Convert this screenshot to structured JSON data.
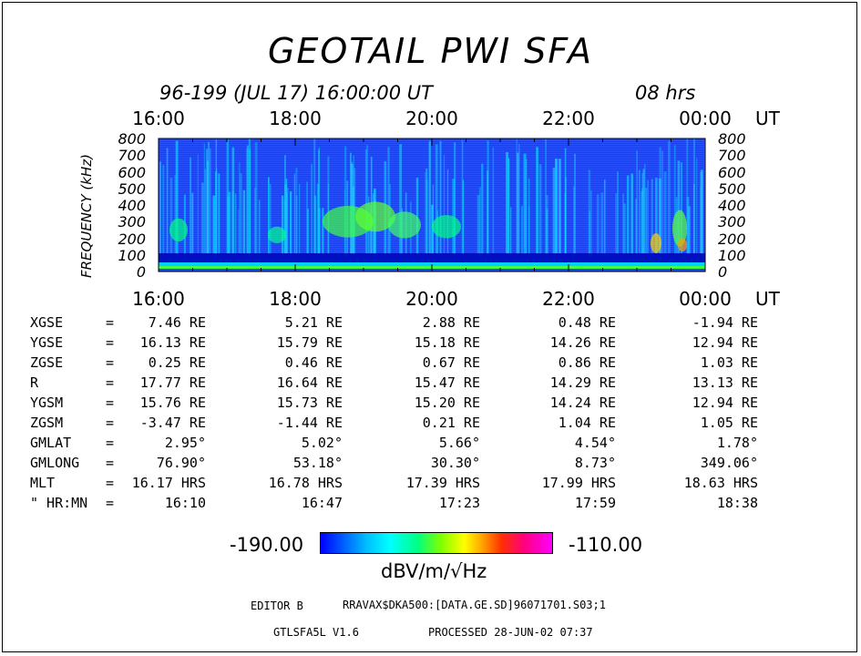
{
  "title": "GEOTAIL PWI SFA",
  "subtitle": "96-199 (JUL 17) 16:00:00 UT",
  "duration": "08 hrs",
  "chart_data": {
    "type": "heatmap",
    "ylabel": "FREQUENCY (kHz)",
    "xunit": "UT",
    "x_ticks": [
      "16:00",
      "18:00",
      "20:00",
      "22:00",
      "00:00"
    ],
    "y_ticks": [
      "800",
      "700",
      "600",
      "500",
      "400",
      "300",
      "200",
      "100",
      "0"
    ],
    "ylim": [
      0,
      800
    ],
    "colorbar": {
      "min": "-190.00",
      "max": "-110.00",
      "unit": "dBV/m/√Hz"
    }
  },
  "colors": {
    "intensity_low": "#0000ff",
    "intensity_mid": "#00ffff",
    "intensity_high": "#ff00ff"
  },
  "orbit": {
    "rows": [
      {
        "label": "XGSE",
        "eq": "=",
        "values": [
          "7.46 RE",
          "5.21 RE",
          "2.88 RE",
          "0.48 RE",
          "-1.94 RE"
        ]
      },
      {
        "label": "YGSE",
        "eq": "=",
        "values": [
          "16.13 RE",
          "15.79 RE",
          "15.18 RE",
          "14.26 RE",
          "12.94 RE"
        ]
      },
      {
        "label": "ZGSE",
        "eq": "=",
        "values": [
          "0.25 RE",
          "0.46 RE",
          "0.67 RE",
          "0.86 RE",
          "1.03 RE"
        ]
      },
      {
        "label": "R",
        "eq": "=",
        "values": [
          "17.77 RE",
          "16.64 RE",
          "15.47 RE",
          "14.29 RE",
          "13.13 RE"
        ]
      },
      {
        "label": "YGSM",
        "eq": "=",
        "values": [
          "15.76 RE",
          "15.73 RE",
          "15.20 RE",
          "14.24 RE",
          "12.94 RE"
        ]
      },
      {
        "label": "ZGSM",
        "eq": "=",
        "values": [
          "-3.47 RE",
          "-1.44 RE",
          "0.21 RE",
          "1.04 RE",
          "1.05 RE"
        ]
      },
      {
        "label": "GMLAT",
        "eq": "=",
        "values": [
          "2.95°",
          "5.02°",
          "5.66°",
          "4.54°",
          "1.78°"
        ]
      },
      {
        "label": "GMLONG",
        "eq": "=",
        "values": [
          "76.90°",
          "53.18°",
          "30.30°",
          "8.73°",
          "349.06°"
        ]
      },
      {
        "label": "MLT",
        "eq": "=",
        "values": [
          "16.17 HRS",
          "16.78 HRS",
          "17.39 HRS",
          "17.99 HRS",
          "18.63 HRS"
        ]
      },
      {
        "label": "\" HR:MN",
        "eq": "=",
        "values": [
          "16:10",
          "16:47",
          "17:23",
          "17:59",
          "18:38"
        ]
      }
    ]
  },
  "footer": {
    "editor": "EDITOR B",
    "path": "RRAVAX$DKA500:[DATA.GE.SD]96071701.S03;1",
    "program": "GTLSFA5L V1.6",
    "processed": "PROCESSED 28-JUN-02  07:37"
  }
}
